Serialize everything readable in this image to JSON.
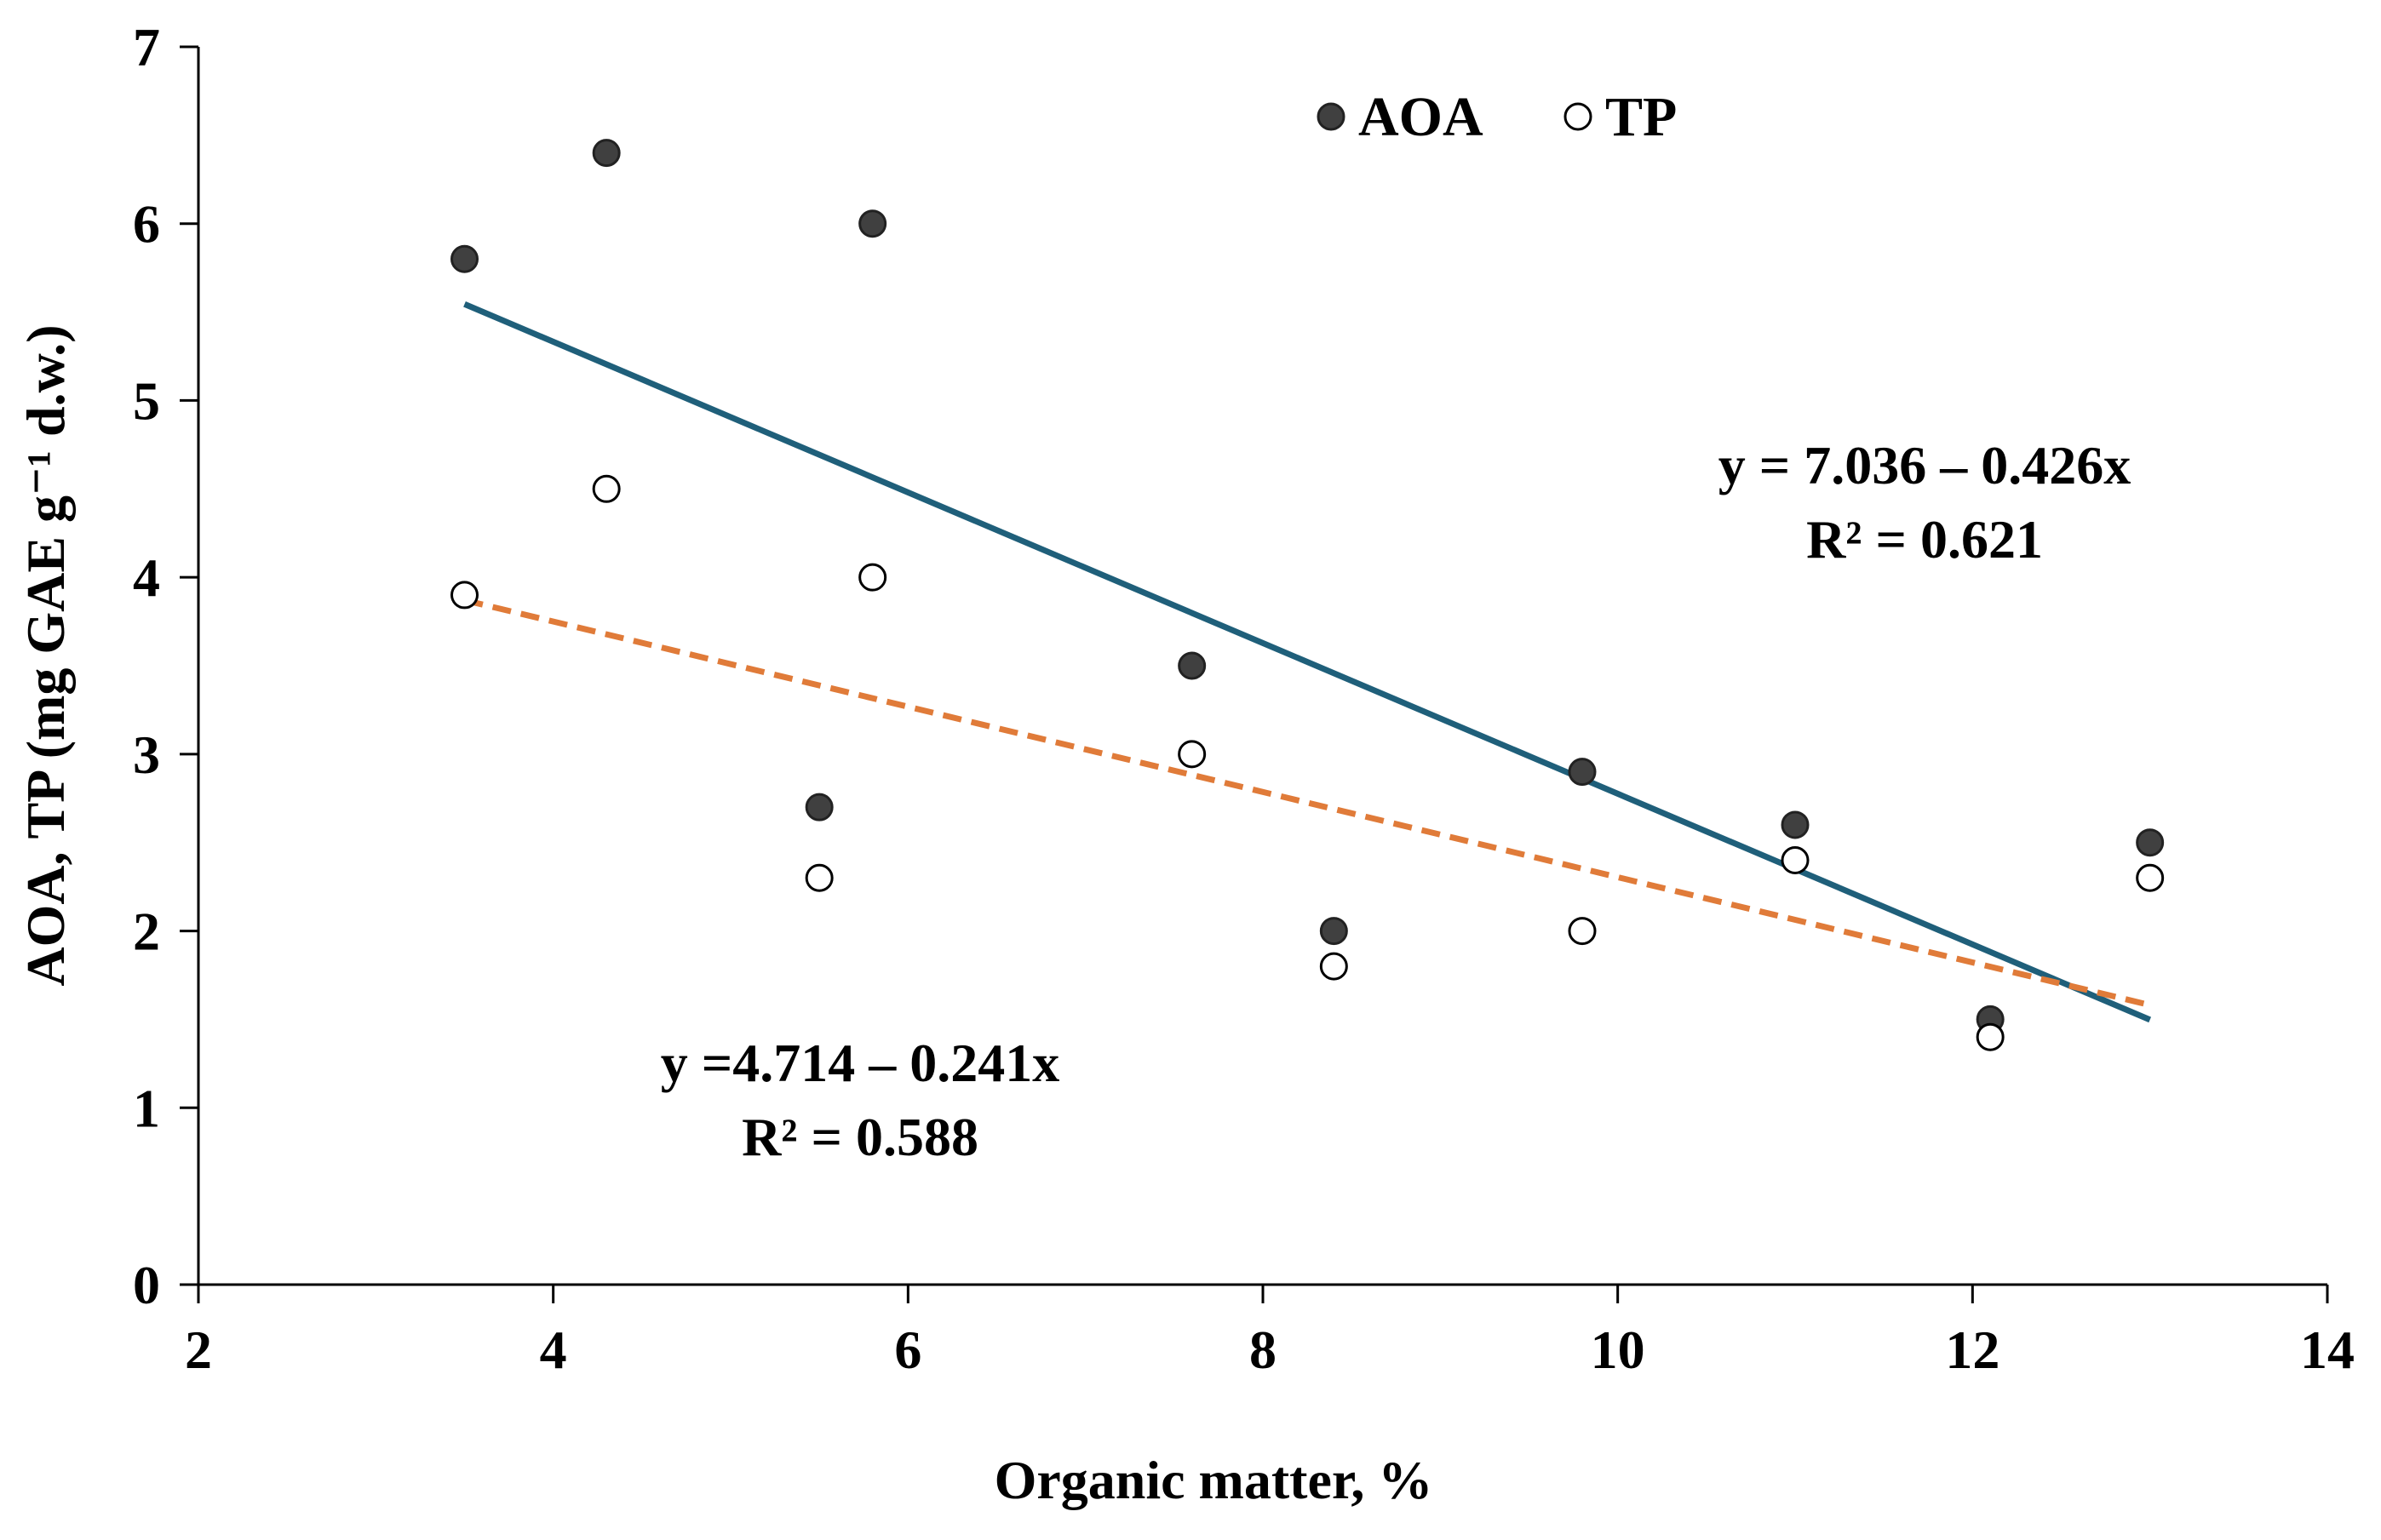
{
  "chart_data": {
    "type": "scatter",
    "title": "",
    "xlabel": "Organic matter, %",
    "ylabel": "AOA, TP (mg GAE g⁻¹ d.w.)",
    "xlim": [
      2,
      14
    ],
    "ylim": [
      0,
      7
    ],
    "xticks": [
      2,
      4,
      6,
      8,
      10,
      12,
      14
    ],
    "yticks": [
      0,
      1,
      2,
      3,
      4,
      5,
      6,
      7
    ],
    "grid": false,
    "legend_position": "top-center",
    "series": [
      {
        "name": "AOA",
        "marker": "filled-circle",
        "color": "#404040",
        "x": [
          3.5,
          4.3,
          5.5,
          5.8,
          7.6,
          8.4,
          9.8,
          11.0,
          12.1,
          13.0
        ],
        "y": [
          5.8,
          6.4,
          2.7,
          6.0,
          3.5,
          2.0,
          2.9,
          2.6,
          1.5,
          2.5
        ],
        "trendline": {
          "intercept": 7.036,
          "slope": -0.426,
          "x_range": [
            3.5,
            13.0
          ],
          "style": "solid",
          "color": "#1f5f7a",
          "equation": "y = 7.036 – 0.426x",
          "r2": "R² = 0.621"
        }
      },
      {
        "name": "TP",
        "marker": "open-circle",
        "color": "#000000",
        "x": [
          3.5,
          4.3,
          5.5,
          5.8,
          7.6,
          8.4,
          9.8,
          11.0,
          12.1,
          13.0
        ],
        "y": [
          3.9,
          4.5,
          2.3,
          4.0,
          3.0,
          1.8,
          2.0,
          2.4,
          1.4,
          2.3
        ],
        "trendline": {
          "intercept": 4.714,
          "slope": -0.241,
          "x_range": [
            3.5,
            13.0
          ],
          "style": "dashed",
          "color": "#e07b39",
          "equation": "y =4.714 – 0.241x",
          "r2": "R² = 0.588"
        }
      }
    ]
  }
}
